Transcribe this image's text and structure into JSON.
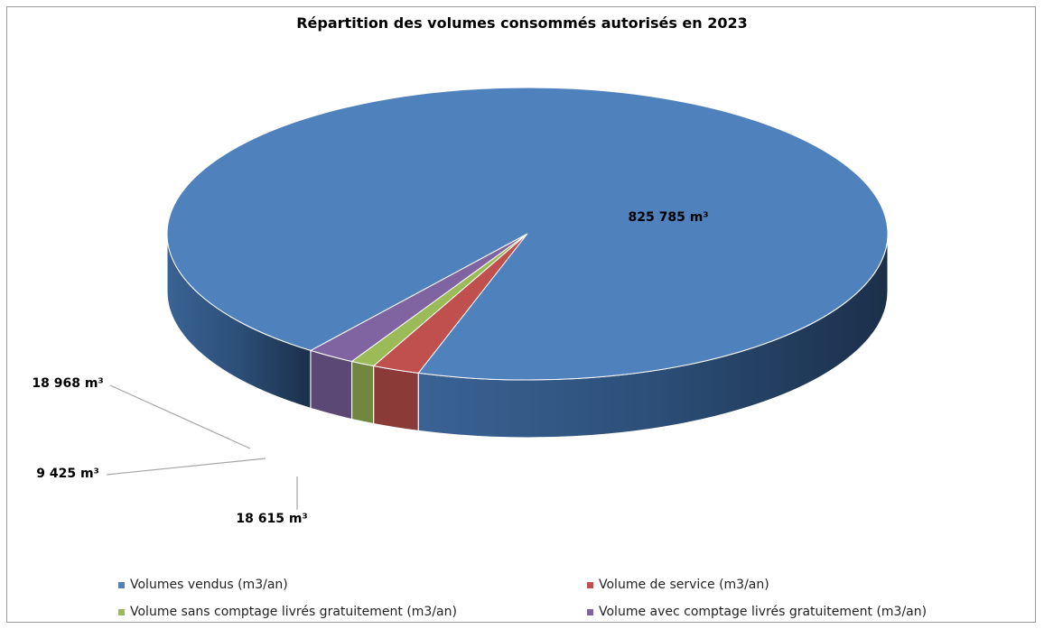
{
  "chart_data": {
    "type": "pie",
    "style": "3d",
    "title": "Répartition des volumes consommés autorisés en 2023",
    "slices": [
      {
        "name": "Volumes vendus (m3/an)",
        "value": 825785,
        "label": "825 785 m³",
        "color": "#4F81BD"
      },
      {
        "name": "Volume de service (m3/an)",
        "value": 18615,
        "label": "18 615 m³",
        "color": "#C0504D"
      },
      {
        "name": "Volume sans comptage livrés gratuitement (m3/an)",
        "value": 9425,
        "label": "9 425 m³",
        "color": "#9BBB59"
      },
      {
        "name": "Volume avec comptage livrés gratuitement (m3/an)",
        "value": 18968,
        "label": "18 968 m³",
        "color": "#8064A2"
      }
    ],
    "legend_position": "bottom"
  }
}
